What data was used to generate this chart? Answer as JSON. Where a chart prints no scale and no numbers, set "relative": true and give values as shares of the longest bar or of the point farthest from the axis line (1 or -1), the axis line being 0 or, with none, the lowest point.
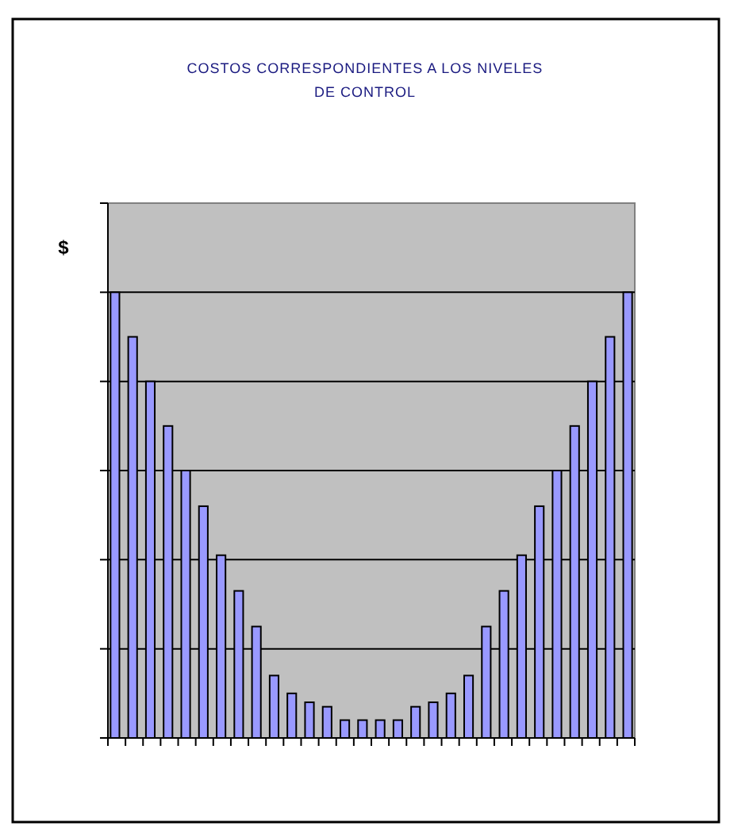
{
  "chart_data": {
    "type": "bar",
    "title": "COSTOS CORRESPONDIENTES A LOS NIVELES DE CONTROL",
    "ylabel": "$",
    "relative": true,
    "grid": "y",
    "categories": [
      null,
      null,
      null,
      null,
      null,
      null,
      null,
      null,
      null,
      null,
      null,
      null,
      null,
      null,
      null,
      null,
      null,
      null,
      null,
      null,
      null,
      null,
      null,
      null,
      null,
      null,
      null,
      null,
      null,
      null
    ],
    "values": [
      1.0,
      0.9,
      0.8,
      0.7,
      0.6,
      0.52,
      0.41,
      0.33,
      0.25,
      0.14,
      0.1,
      0.08,
      0.07,
      0.04,
      0.04,
      0.04,
      0.04,
      0.07,
      0.08,
      0.1,
      0.14,
      0.25,
      0.33,
      0.41,
      0.52,
      0.6,
      0.7,
      0.8,
      0.9,
      1.0
    ],
    "color": "#9999ff"
  }
}
